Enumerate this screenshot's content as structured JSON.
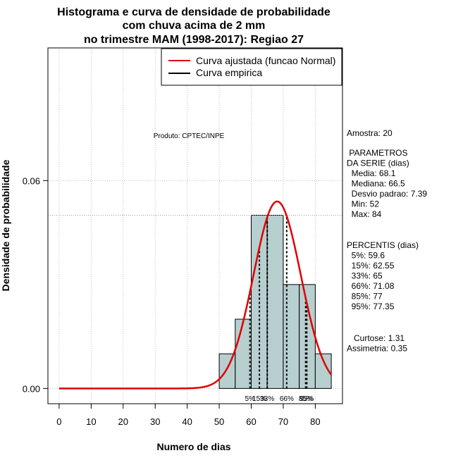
{
  "chart_data": {
    "type": "histogram",
    "title_lines": [
      "Histograma e curva de densidade de probabilidade",
      "com chuva acima de 2 mm",
      "no trimestre MAM (1998-2017): Regiao 27"
    ],
    "xlabel": "Numero de dias",
    "ylabel": "Densidade de probabilidade",
    "xlim": [
      -3.5,
      88.5
    ],
    "ylim": [
      -0.0044,
      0.0983
    ],
    "x_ticks": [
      0,
      10,
      20,
      30,
      40,
      50,
      60,
      70,
      80
    ],
    "y_ticks": [
      0.0,
      0.06
    ],
    "y_tick_labels": [
      "0.00",
      "0.06"
    ],
    "grid": true,
    "reference_line_y": 0.05,
    "legend": {
      "position": "top-right",
      "entries": [
        {
          "label": "Curva ajustada (funcao Normal)",
          "color": "#e00000"
        },
        {
          "label": "Curva empirica",
          "color": "#000000"
        }
      ]
    },
    "bins": [
      {
        "x0": 50,
        "x1": 55,
        "density": 0.01
      },
      {
        "x0": 55,
        "x1": 60,
        "density": 0.02
      },
      {
        "x0": 60,
        "x1": 65,
        "density": 0.05
      },
      {
        "x0": 65,
        "x1": 70,
        "density": 0.05
      },
      {
        "x0": 70,
        "x1": 75,
        "density": 0.03
      },
      {
        "x0": 75,
        "x1": 80,
        "density": 0.03
      },
      {
        "x0": 80,
        "x1": 85,
        "density": 0.01
      }
    ],
    "bar_color": "#b8cfcf",
    "normal_fit": {
      "mean": 68.1,
      "sd": 7.39,
      "x_from": 0,
      "x_to": 85,
      "color": "#e00000"
    },
    "percentile_lines": [
      {
        "label": "5%",
        "x": 59.6
      },
      {
        "label": "15%",
        "x": 62.55
      },
      {
        "label": "33%",
        "x": 65
      },
      {
        "label": "66%",
        "x": 71.08
      },
      {
        "label": "85%",
        "x": 77
      },
      {
        "label": "95%",
        "x": 77.35
      }
    ],
    "product_label": "Produto: CPTEC/INPE",
    "stats_block_1": [
      "Amostra: 20"
    ],
    "stats_block_2": [
      " PARAMETROS",
      "DA SERIE (dias)",
      "  Media: 68.1",
      "  Mediana: 66.5",
      "  Desvio padrao: 7.39",
      "  Min: 52",
      "  Max: 84"
    ],
    "stats_block_3": [
      "PERCENTIS (dias)",
      "  5%: 59.6",
      "  15%: 62.55",
      "  33%: 65",
      "  66%: 71.08",
      "  85%: 77",
      "  95%: 77.35"
    ],
    "stats_block_4": [
      "   Curtose: 1.31",
      "Assimetria: 0.35"
    ]
  }
}
